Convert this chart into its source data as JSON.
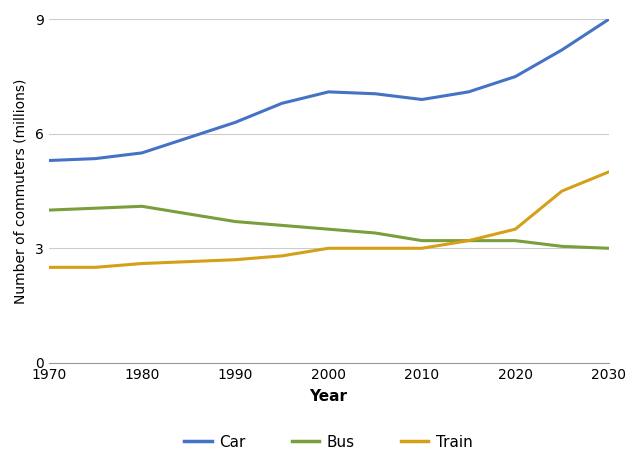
{
  "years": [
    1970,
    1975,
    1980,
    1985,
    1990,
    1995,
    2000,
    2005,
    2010,
    2015,
    2020,
    2025,
    2030
  ],
  "car": [
    5.3,
    5.35,
    5.5,
    5.9,
    6.3,
    6.8,
    7.1,
    7.05,
    6.9,
    7.1,
    7.5,
    8.2,
    9.0
  ],
  "bus": [
    4.0,
    4.05,
    4.1,
    3.9,
    3.7,
    3.6,
    3.5,
    3.4,
    3.2,
    3.2,
    3.2,
    3.05,
    3.0
  ],
  "train": [
    2.5,
    2.5,
    2.6,
    2.65,
    2.7,
    2.8,
    3.0,
    3.0,
    3.0,
    3.2,
    3.5,
    4.5,
    5.0
  ],
  "car_color": "#4472c4",
  "bus_color": "#7a9e3b",
  "train_color": "#d4a017",
  "xlabel": "Year",
  "ylabel": "Number of commuters (millions)",
  "ylim": [
    0,
    9
  ],
  "yticks": [
    0,
    3,
    6,
    9
  ],
  "xticks": [
    1970,
    1980,
    1990,
    2000,
    2010,
    2020,
    2030
  ],
  "grid_color": "#cccccc",
  "background_color": "#ffffff",
  "legend_labels": [
    "Car",
    "Bus",
    "Train"
  ],
  "linewidth": 2.2,
  "tick_labelsize": 10,
  "ylabel_fontsize": 10,
  "xlabel_fontsize": 11
}
